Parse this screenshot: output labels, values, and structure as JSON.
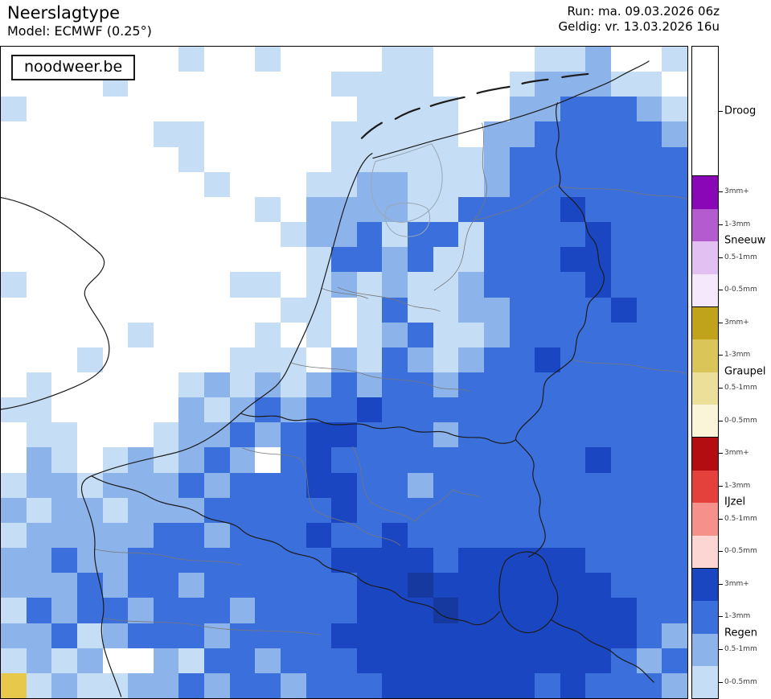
{
  "header": {
    "title": "Neerslagtype",
    "model": "Model: ECMWF (0.25°)",
    "run": "Run: ma. 09.03.2026 06z",
    "valid": "Geldig: vr. 13.03.2026 16u"
  },
  "watermark": "noodweer.be",
  "legend": {
    "droog_label": "Droog",
    "droog_color": "#ffffff",
    "sections": [
      {
        "name": "Sneeuw",
        "bands": [
          {
            "label": "3mm+",
            "color": "#8a07b8"
          },
          {
            "label": "1-3mm",
            "color": "#b55bd0"
          },
          {
            "label": "0.5-1mm",
            "color": "#e3c0f2"
          },
          {
            "label": "0-0.5mm",
            "color": "#f6e8fc"
          }
        ]
      },
      {
        "name": "Graupel",
        "bands": [
          {
            "label": "3mm+",
            "color": "#c1a31b"
          },
          {
            "label": "1-3mm",
            "color": "#d9c558"
          },
          {
            "label": "0.5-1mm",
            "color": "#ecdf99"
          },
          {
            "label": "0-0.5mm",
            "color": "#faf4d8"
          }
        ]
      },
      {
        "name": "IJzel",
        "bands": [
          {
            "label": "3mm+",
            "color": "#b30d12"
          },
          {
            "label": "1-3mm",
            "color": "#e4403c"
          },
          {
            "label": "0.5-1mm",
            "color": "#f5908a"
          },
          {
            "label": "0-0.5mm",
            "color": "#fbd6d2"
          }
        ]
      },
      {
        "name": "Regen",
        "bands": [
          {
            "label": "3mm+",
            "color": "#1b46c2"
          },
          {
            "label": "1-3mm",
            "color": "#3a6fdc"
          },
          {
            "label": "0.5-1mm",
            "color": "#8cb3ea"
          },
          {
            "label": "0-0.5mm",
            "color": "#c5def6"
          }
        ]
      }
    ]
  },
  "map_grid": {
    "cols": 27,
    "rows_count": 26,
    "palette": {
      "0": "#ffffff",
      "1": "#c5def6",
      "2": "#8cb3ea",
      "3": "#3a6fdc",
      "4": "#1b46c2",
      "5": "#15399f",
      "g": "#e8c84a"
    },
    "rows": [
      "000000010010000110000112001",
      "000010000000011110001222110",
      "100000000000001111002233321",
      "000000110000011111022333332",
      "000000010000011111123333333",
      "000000001000112211123333333",
      "000000000010222211333343333",
      "000000000001223133133334333",
      "000000000000133231133344333",
      "100000000110121211233334333",
      "000000000001101311223333433",
      "000001000010101231123333333",
      "000100000111021321233433333",
      "010000012121232332333333333",
      "110000021232334333333333333",
      "011000122323443332333333333",
      "021012123203433333333334333",
      "122122232333443323333333333",
      "212212223333343333333333333",
      "122222332333433433333333333",
      "223223333333344443444443333",
      "222323323333334454444444333",
      "132332333233334445444444433",
      "223123332333344444444444432",
      "121200213323334444444444323",
      "g12112232332333444444343332"
    ]
  }
}
